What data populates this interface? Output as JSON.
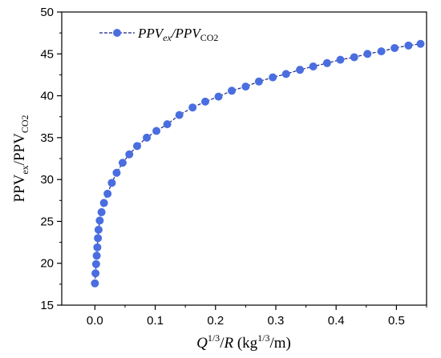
{
  "chart_data": {
    "type": "line",
    "title": "",
    "xlabel": {
      "base": "Q",
      "sup": "1/3",
      "mid": "/",
      "var": "R",
      "unit_pre": " (kg",
      "unit_sup": "1/3",
      "unit_post": "/m)"
    },
    "ylabel": {
      "part1": "PPV",
      "sub1": "ex",
      "sep": "/",
      "part2": "PPV",
      "sub2": "CO2"
    },
    "xlim": [
      -0.055,
      0.55
    ],
    "ylim": [
      15,
      50
    ],
    "xticks": [
      "0.0",
      "0.1",
      "0.2",
      "0.3",
      "0.4",
      "0.5"
    ],
    "xtick_values": [
      0.0,
      0.1,
      0.2,
      0.3,
      0.4,
      0.5
    ],
    "yticks": [
      "15",
      "20",
      "25",
      "30",
      "35",
      "40",
      "45",
      "50"
    ],
    "ytick_values": [
      15,
      20,
      25,
      30,
      35,
      40,
      45,
      50
    ],
    "grid": false,
    "legend": {
      "placement": "top-left"
    },
    "series": [
      {
        "legend_parts": {
          "a": "PPV",
          "a_sub": "ex",
          "sep": "/",
          "b": "PPV",
          "b_sub": "CO2"
        },
        "color": "#4a6ee0",
        "line_color": "#1a237e",
        "points": [
          [
            0.0,
            17.6
          ],
          [
            0.001,
            18.8
          ],
          [
            0.002,
            19.9
          ],
          [
            0.003,
            20.9
          ],
          [
            0.004,
            21.9
          ],
          [
            0.005,
            23.0
          ],
          [
            0.006,
            24.0
          ],
          [
            0.008,
            25.1
          ],
          [
            0.011,
            26.1
          ],
          [
            0.015,
            27.2
          ],
          [
            0.021,
            28.3
          ],
          [
            0.028,
            29.6
          ],
          [
            0.036,
            30.8
          ],
          [
            0.046,
            32.0
          ],
          [
            0.057,
            33.0
          ],
          [
            0.07,
            34.0
          ],
          [
            0.086,
            35.0
          ],
          [
            0.102,
            35.8
          ],
          [
            0.12,
            36.6
          ],
          [
            0.14,
            37.7
          ],
          [
            0.162,
            38.6
          ],
          [
            0.183,
            39.3
          ],
          [
            0.205,
            39.9
          ],
          [
            0.227,
            40.6
          ],
          [
            0.25,
            41.1
          ],
          [
            0.272,
            41.7
          ],
          [
            0.295,
            42.2
          ],
          [
            0.317,
            42.6
          ],
          [
            0.34,
            43.1
          ],
          [
            0.362,
            43.5
          ],
          [
            0.385,
            43.9
          ],
          [
            0.407,
            44.3
          ],
          [
            0.43,
            44.6
          ],
          [
            0.452,
            45.0
          ],
          [
            0.475,
            45.3
          ],
          [
            0.497,
            45.7
          ],
          [
            0.52,
            46.0
          ],
          [
            0.54,
            46.2
          ]
        ]
      }
    ]
  }
}
